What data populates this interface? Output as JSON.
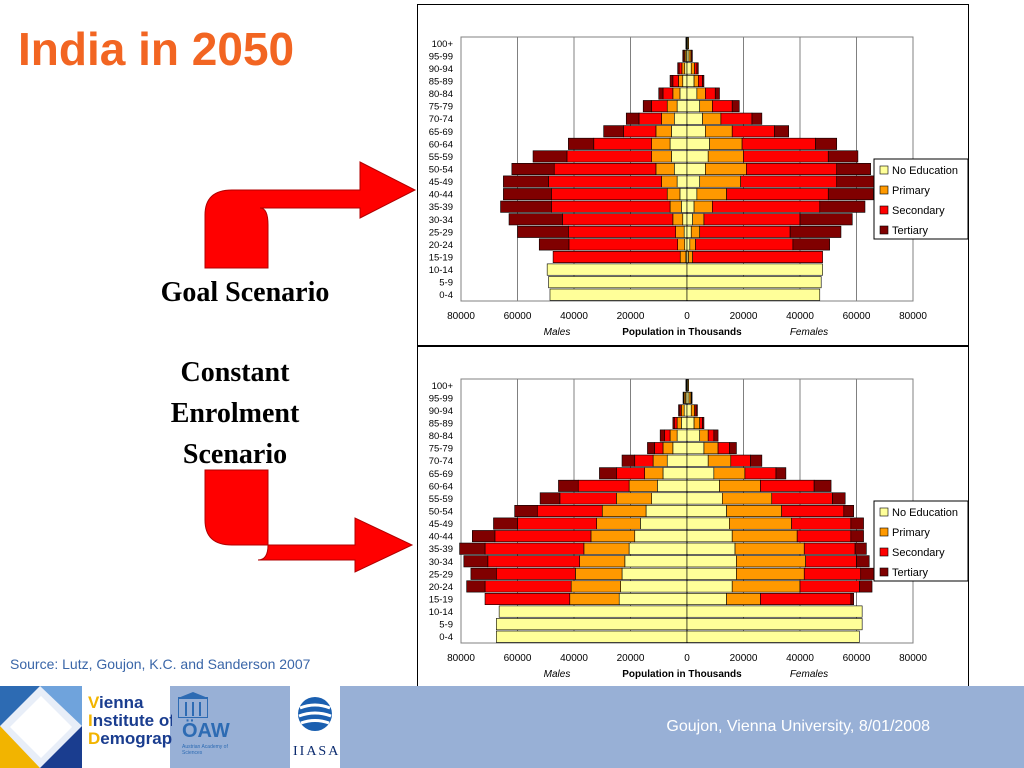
{
  "slide_title": "India in 2050",
  "scenarios": {
    "goal": "Goal Scenario",
    "constant_line1": "Constant",
    "constant_line2": "Enrolment",
    "constant_line3": "Scenario"
  },
  "source": "Source: Lutz, Goujon, K.C. and Sanderson 2007",
  "footer_text": "Goujon,  Vienna University, 8/01/2008",
  "logos": {
    "vid_line1_cap": "V",
    "vid_line1_rest": "ienna",
    "vid_line2_cap": "I",
    "vid_line2_rest": "nstitute of",
    "vid_line3_cap": "D",
    "vid_line3_rest": "emography",
    "oaw": "ÖAW",
    "oaw_sub": "Austrian Academy of Sciences",
    "iiasa": "IIASA"
  },
  "colors": {
    "title": "#f26522",
    "no_education": "#ffff99",
    "primary": "#ff9900",
    "secondary": "#ff0000",
    "tertiary": "#800000",
    "arrow": "#ff0000",
    "footer": "#98b0d6",
    "source_text": "#3a66a8"
  },
  "chart_data": [
    {
      "type": "population_pyramid",
      "xlabel": "Population in Thousands",
      "left_label": "Males",
      "right_label": "Females",
      "xticks": [
        80000,
        60000,
        40000,
        20000,
        0,
        20000,
        40000,
        60000,
        80000
      ],
      "xlim": [
        -80000,
        80000
      ],
      "legend": [
        "No Education",
        "Primary",
        "Secondary",
        "Tertiary"
      ],
      "legend_position": "right",
      "age_groups": [
        "100+",
        "95-99",
        "90-94",
        "85-89",
        "80-84",
        "75-79",
        "70-74",
        "65-69",
        "60-64",
        "55-59",
        "50-54",
        "45-49",
        "40-44",
        "35-39",
        "30-34",
        "25-29",
        "20-24",
        "15-19",
        "10-14",
        "5-9",
        "0-4"
      ],
      "males": {
        "No Education": [
          200,
          400,
          800,
          1500,
          2500,
          3500,
          4500,
          5500,
          6000,
          5500,
          4500,
          3500,
          2500,
          2000,
          1500,
          1000,
          800,
          400,
          49500,
          49000,
          48500
        ],
        "Primary": [
          200,
          500,
          1000,
          1500,
          2500,
          3500,
          4500,
          5500,
          6500,
          7000,
          6500,
          5500,
          4500,
          4000,
          3500,
          3000,
          2500,
          2000,
          0,
          0,
          0
        ],
        "Secondary": [
          0,
          400,
          1000,
          2000,
          3500,
          5500,
          8000,
          11500,
          20500,
          30000,
          36000,
          40000,
          41000,
          42000,
          39000,
          38000,
          38500,
          45000,
          0,
          0,
          0
        ],
        "Tertiary": [
          0,
          200,
          500,
          1000,
          1500,
          3000,
          4500,
          7000,
          9000,
          12000,
          15000,
          16000,
          17000,
          18000,
          19000,
          18000,
          10500,
          0,
          0,
          0,
          0
        ]
      },
      "females": {
        "No Education": [
          300,
          700,
          1500,
          2500,
          3500,
          4500,
          5500,
          6500,
          8000,
          7500,
          6500,
          4500,
          3500,
          2500,
          2000,
          1500,
          1000,
          500,
          48000,
          47500,
          47000
        ],
        "Primary": [
          300,
          700,
          1200,
          1500,
          3000,
          4500,
          6500,
          9500,
          11500,
          12500,
          14500,
          14500,
          10500,
          6500,
          4000,
          3000,
          2000,
          1500,
          0,
          0,
          0
        ],
        "Secondary": [
          0,
          300,
          800,
          1500,
          3500,
          7000,
          11000,
          15000,
          26000,
          30000,
          32000,
          34000,
          36000,
          38000,
          34000,
          32000,
          34500,
          46000,
          0,
          0,
          0
        ],
        "Tertiary": [
          0,
          200,
          500,
          500,
          1500,
          2500,
          3500,
          5000,
          7500,
          10500,
          12000,
          13500,
          16000,
          16000,
          18500,
          18000,
          13000,
          0,
          0,
          0,
          0
        ]
      }
    },
    {
      "type": "population_pyramid",
      "xlabel": "Population in Thousands",
      "left_label": "Males",
      "right_label": "Females",
      "xticks": [
        80000,
        60000,
        40000,
        20000,
        0,
        20000,
        40000,
        60000,
        80000
      ],
      "xlim": [
        -80000,
        80000
      ],
      "legend": [
        "No Education",
        "Primary",
        "Secondary",
        "Tertiary"
      ],
      "legend_position": "right",
      "age_groups": [
        "100+",
        "95-99",
        "90-94",
        "85-89",
        "80-84",
        "75-79",
        "70-74",
        "65-69",
        "60-64",
        "55-59",
        "50-54",
        "45-49",
        "40-44",
        "35-39",
        "30-34",
        "25-29",
        "20-24",
        "15-19",
        "10-14",
        "5-9",
        "0-4"
      ],
      "males": {
        "No Education": [
          200,
          500,
          1000,
          2000,
          3500,
          5000,
          7000,
          8500,
          10500,
          12500,
          14500,
          16500,
          18500,
          20500,
          22000,
          23000,
          23500,
          24000,
          66500,
          67500,
          67500
        ],
        "Primary": [
          200,
          500,
          1000,
          1500,
          2500,
          3500,
          5000,
          6500,
          10000,
          12500,
          15500,
          15500,
          15500,
          16000,
          16000,
          16500,
          17500,
          17500,
          0,
          0,
          0
        ],
        "Secondary": [
          0,
          200,
          500,
          1000,
          2000,
          3000,
          6500,
          10000,
          18000,
          20000,
          23000,
          28000,
          34000,
          35000,
          32500,
          28000,
          30500,
          30000,
          0,
          0,
          0
        ],
        "Tertiary": [
          0,
          200,
          500,
          500,
          1500,
          2500,
          4500,
          6000,
          7000,
          7000,
          8000,
          8500,
          8000,
          9000,
          8500,
          9000,
          6500,
          0,
          0,
          0,
          0
        ]
      },
      "females": {
        "No Education": [
          300,
          700,
          1500,
          2500,
          4500,
          6000,
          7500,
          9500,
          11500,
          12500,
          14000,
          15000,
          16000,
          17000,
          17500,
          17500,
          16000,
          14000,
          62000,
          62000,
          61000
        ],
        "Primary": [
          300,
          700,
          1200,
          2000,
          3000,
          5000,
          8000,
          11000,
          14500,
          17500,
          19500,
          22000,
          23000,
          24500,
          24500,
          24000,
          24000,
          12000,
          0,
          0,
          0
        ],
        "Secondary": [
          0,
          200,
          500,
          1000,
          2000,
          4000,
          7000,
          11000,
          19000,
          21500,
          22000,
          21000,
          19000,
          18000,
          18000,
          20000,
          21000,
          32000,
          0,
          0,
          0
        ],
        "Tertiary": [
          0,
          200,
          500,
          500,
          1500,
          2500,
          4000,
          3500,
          6000,
          4500,
          3500,
          4500,
          4500,
          4000,
          4500,
          5500,
          4500,
          1000,
          0,
          0,
          0
        ]
      }
    }
  ]
}
